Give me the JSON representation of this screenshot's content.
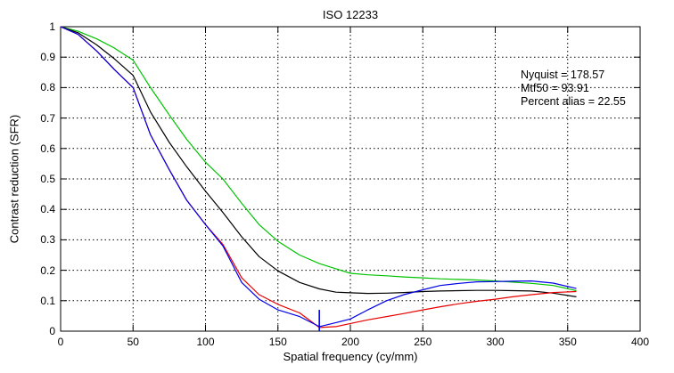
{
  "figure": {
    "title": "ISO 12233",
    "xlabel": "Spatial frequency (cy/mm)",
    "ylabel": "Contrast reduction (SFR)"
  },
  "annotation": {
    "lines": [
      "Nyquist = 178.57",
      "Mtf50 = 93.91",
      "Percent alias = 22.55"
    ]
  },
  "chart_data": {
    "type": "line",
    "title": "ISO 12233",
    "xlabel": "Spatial frequency (cy/mm)",
    "ylabel": "Contrast reduction (SFR)",
    "xlim": [
      0,
      400
    ],
    "ylim": [
      0,
      1
    ],
    "xticks": [
      0,
      50,
      100,
      150,
      200,
      250,
      300,
      350,
      400
    ],
    "yticks": [
      0,
      0.1,
      0.2,
      0.3,
      0.4,
      0.5,
      0.6,
      0.7,
      0.8,
      0.9,
      1
    ],
    "grid": true,
    "grid_style": "dotted",
    "legend": "none",
    "x": [
      0,
      12,
      25,
      37,
      50,
      62,
      75,
      87,
      100,
      112,
      125,
      137,
      150,
      165,
      178.57,
      190,
      200,
      212,
      225,
      237,
      250,
      262,
      275,
      287,
      300,
      312,
      325,
      340,
      356
    ],
    "series": [
      {
        "name": "green-channel",
        "color": "#00c300",
        "values": [
          1.0,
          0.985,
          0.96,
          0.93,
          0.89,
          0.8,
          0.71,
          0.63,
          0.555,
          0.5,
          0.42,
          0.35,
          0.295,
          0.25,
          0.222,
          0.205,
          0.19,
          0.185,
          0.182,
          0.178,
          0.175,
          0.172,
          0.17,
          0.168,
          0.165,
          0.161,
          0.157,
          0.15,
          0.133
        ]
      },
      {
        "name": "luminance-channel",
        "color": "#000000",
        "values": [
          1.0,
          0.98,
          0.94,
          0.895,
          0.84,
          0.72,
          0.62,
          0.54,
          0.46,
          0.39,
          0.31,
          0.245,
          0.198,
          0.16,
          0.139,
          0.128,
          0.126,
          0.124,
          0.125,
          0.127,
          0.13,
          0.132,
          0.133,
          0.134,
          0.134,
          0.133,
          0.132,
          0.125,
          0.113
        ]
      },
      {
        "name": "red-channel",
        "color": "#e80000",
        "values": [
          1.0,
          0.975,
          0.92,
          0.86,
          0.8,
          0.645,
          0.53,
          0.43,
          0.35,
          0.285,
          0.175,
          0.12,
          0.088,
          0.06,
          0.012,
          0.015,
          0.025,
          0.037,
          0.048,
          0.058,
          0.07,
          0.08,
          0.09,
          0.098,
          0.105,
          0.113,
          0.12,
          0.127,
          0.13
        ]
      },
      {
        "name": "blue-channel",
        "color": "#0000e8",
        "values": [
          1.0,
          0.975,
          0.92,
          0.86,
          0.8,
          0.645,
          0.53,
          0.43,
          0.35,
          0.28,
          0.16,
          0.105,
          0.07,
          0.048,
          0.015,
          0.028,
          0.04,
          0.07,
          0.1,
          0.12,
          0.136,
          0.15,
          0.157,
          0.162,
          0.163,
          0.164,
          0.165,
          0.158,
          0.14
        ]
      }
    ],
    "nyquist_marker": {
      "x": 178.57,
      "y0": 0,
      "y1": 0.07,
      "color": "#0000e8"
    },
    "stats": {
      "nyquist": 178.57,
      "mtf50": 93.91,
      "percent_alias": 22.55
    },
    "axis_color": "#000000"
  }
}
